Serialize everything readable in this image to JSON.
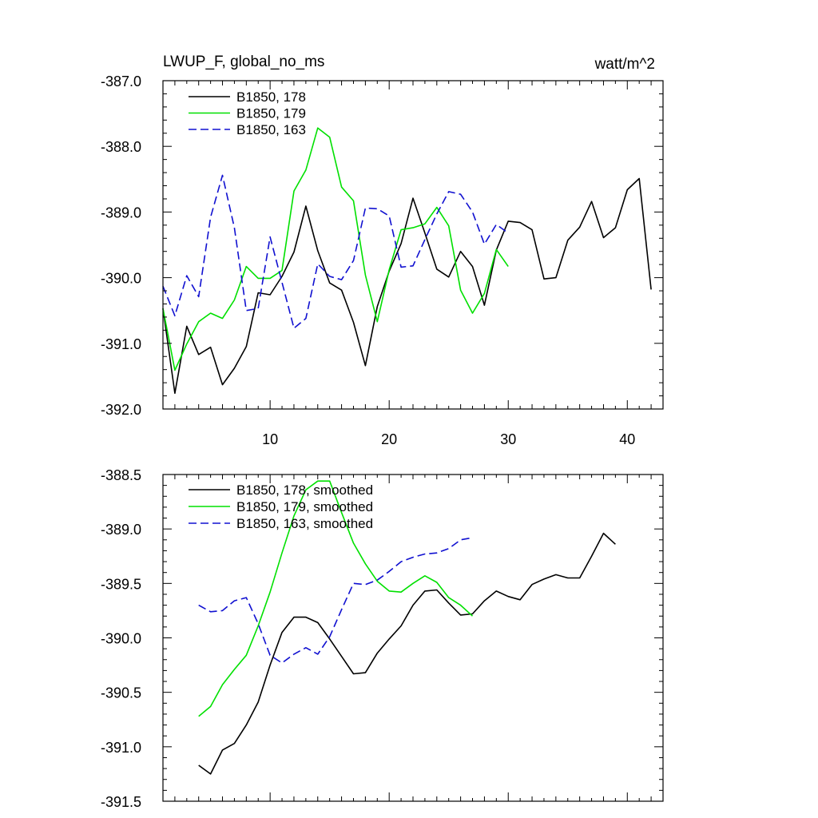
{
  "chart_data": [
    {
      "type": "line",
      "title": "LWUP_F, global_no_ms",
      "units": "watt/m^2",
      "xlabel": "",
      "ylabel": "",
      "xlim": [
        1,
        43
      ],
      "ylim": [
        -392.0,
        -387.0
      ],
      "y_ticks": [
        -392.0,
        -391.0,
        -390.0,
        -389.0,
        -388.0,
        -387.0
      ],
      "y_tick_labels": [
        "-392.0",
        "-391.0",
        "-390.0",
        "-389.0",
        "-388.0",
        "-387.0"
      ],
      "x_ticks": [
        10,
        20,
        30,
        40
      ],
      "x_tick_labels": [
        "10",
        "20",
        "30",
        "40"
      ],
      "legend_position": "top-left",
      "series": [
        {
          "name": "B1850, 178",
          "color": "#000000",
          "dash": "solid",
          "x": [
            1,
            2,
            3,
            4,
            5,
            6,
            7,
            8,
            9,
            10,
            11,
            12,
            13,
            14,
            15,
            16,
            17,
            18,
            19,
            20,
            21,
            22,
            23,
            24,
            25,
            26,
            27,
            28,
            29,
            30,
            31,
            32,
            33,
            34,
            35,
            36,
            37,
            38,
            39,
            40,
            41,
            42
          ],
          "y": [
            -390.47,
            -391.76,
            -390.74,
            -391.17,
            -391.06,
            -391.63,
            -391.38,
            -391.05,
            -390.23,
            -390.26,
            -389.98,
            -389.61,
            -388.91,
            -389.59,
            -390.08,
            -390.19,
            -390.68,
            -391.34,
            -390.44,
            -389.9,
            -389.48,
            -388.79,
            -389.32,
            -389.87,
            -389.99,
            -389.6,
            -389.83,
            -390.42,
            -389.58,
            -389.14,
            -389.16,
            -389.27,
            -390.02,
            -390.0,
            -389.43,
            -389.23,
            -388.84,
            -389.39,
            -389.24,
            -388.66,
            -388.49,
            -390.18
          ]
        },
        {
          "name": "B1850, 179",
          "color": "#00e000",
          "dash": "solid",
          "x": [
            1,
            2,
            3,
            4,
            5,
            6,
            7,
            8,
            9,
            10,
            11,
            12,
            13,
            14,
            15,
            16,
            17,
            18,
            19,
            20,
            21,
            22,
            23,
            24,
            25,
            26,
            27,
            28,
            29,
            30
          ],
          "y": [
            -390.47,
            -391.41,
            -391.01,
            -390.67,
            -390.54,
            -390.62,
            -390.34,
            -389.83,
            -390.01,
            -390.01,
            -389.89,
            -388.68,
            -388.36,
            -387.72,
            -387.86,
            -388.62,
            -388.83,
            -389.96,
            -390.67,
            -389.88,
            -389.27,
            -389.24,
            -389.18,
            -388.93,
            -389.21,
            -390.19,
            -390.54,
            -390.24,
            -389.57,
            -389.83
          ]
        },
        {
          "name": "B1850, 163",
          "color": "#1010d0",
          "dash": "dashed",
          "x": [
            1,
            2,
            3,
            4,
            5,
            6,
            7,
            8,
            9,
            10,
            11,
            12,
            13,
            14,
            15,
            16,
            17,
            18,
            19,
            20,
            21,
            22,
            23,
            24,
            25,
            26,
            27,
            28,
            29,
            30
          ],
          "y": [
            -390.13,
            -390.58,
            -389.97,
            -390.29,
            -389.08,
            -388.44,
            -389.24,
            -390.5,
            -390.47,
            -389.38,
            -390.07,
            -390.77,
            -390.62,
            -389.79,
            -389.98,
            -390.03,
            -389.74,
            -388.94,
            -388.95,
            -389.06,
            -389.84,
            -389.82,
            -389.42,
            -389.03,
            -388.69,
            -388.73,
            -389.0,
            -389.49,
            -389.19,
            -389.32
          ]
        }
      ]
    },
    {
      "type": "line",
      "title": "",
      "xlabel": "",
      "ylabel": "",
      "xlim": [
        1,
        43
      ],
      "ylim": [
        -391.5,
        -388.5
      ],
      "y_ticks": [
        -391.5,
        -391.0,
        -390.5,
        -390.0,
        -389.5,
        -389.0,
        -388.5
      ],
      "y_tick_labels": [
        "-391.5",
        "-391.0",
        "-390.5",
        "-390.0",
        "-389.5",
        "-389.0",
        "-388.5"
      ],
      "x_ticks": [
        10,
        20,
        30,
        40
      ],
      "x_tick_labels": [],
      "legend_position": "top-left",
      "series": [
        {
          "name": "B1850, 178, smoothed",
          "color": "#000000",
          "dash": "solid",
          "x": [
            4,
            5,
            6,
            7,
            8,
            9,
            10,
            11,
            12,
            13,
            14,
            15,
            16,
            17,
            18,
            19,
            20,
            21,
            22,
            23,
            24,
            25,
            26,
            27,
            28,
            29,
            30,
            31,
            32,
            33,
            34,
            35,
            36,
            37,
            38,
            39
          ],
          "y": [
            -391.17,
            -391.25,
            -391.03,
            -390.97,
            -390.8,
            -390.59,
            -390.25,
            -389.95,
            -389.81,
            -389.81,
            -389.86,
            -390.01,
            -390.17,
            -390.33,
            -390.32,
            -390.14,
            -390.01,
            -389.89,
            -389.7,
            -389.57,
            -389.56,
            -389.68,
            -389.79,
            -389.78,
            -389.66,
            -389.57,
            -389.62,
            -389.65,
            -389.51,
            -389.46,
            -389.42,
            -389.45,
            -389.45,
            -389.25,
            -389.04,
            -389.14
          ]
        },
        {
          "name": "B1850, 179, smoothed",
          "color": "#00e000",
          "dash": "solid",
          "x": [
            4,
            5,
            6,
            7,
            8,
            9,
            10,
            11,
            12,
            13,
            14,
            15,
            16,
            17,
            18,
            19,
            20,
            21,
            22,
            23,
            24,
            25,
            26,
            27
          ],
          "y": [
            -390.72,
            -390.63,
            -390.43,
            -390.29,
            -390.16,
            -389.89,
            -389.58,
            -389.22,
            -388.88,
            -388.64,
            -388.56,
            -388.56,
            -388.85,
            -389.13,
            -389.32,
            -389.48,
            -389.57,
            -389.58,
            -389.5,
            -389.43,
            -389.49,
            -389.63,
            -389.7,
            -389.8
          ]
        },
        {
          "name": "B1850, 163, smoothed",
          "color": "#1010d0",
          "dash": "dashed",
          "x": [
            4,
            5,
            6,
            7,
            8,
            9,
            10,
            11,
            12,
            13,
            14,
            15,
            16,
            17,
            18,
            19,
            20,
            21,
            22,
            23,
            24,
            25,
            26,
            27
          ],
          "y": [
            -389.7,
            -389.76,
            -389.75,
            -389.66,
            -389.63,
            -389.87,
            -390.16,
            -390.23,
            -390.15,
            -390.09,
            -390.15,
            -389.99,
            -389.74,
            -389.5,
            -389.51,
            -389.47,
            -389.39,
            -389.3,
            -389.26,
            -389.23,
            -389.22,
            -389.18,
            -389.1,
            -389.08
          ]
        }
      ]
    }
  ]
}
